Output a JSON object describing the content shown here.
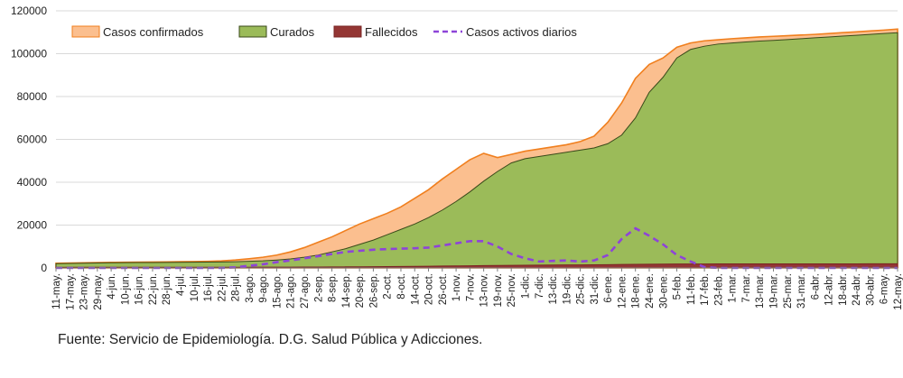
{
  "chart_data": {
    "type": "area",
    "ylim": [
      0,
      120000
    ],
    "yticks": [
      0,
      20000,
      40000,
      60000,
      80000,
      100000,
      120000
    ],
    "grid": true,
    "legend_position": "top",
    "categories": [
      "11-may.",
      "17-may.",
      "23-may.",
      "29-may.",
      "4-jun.",
      "10-jun.",
      "16-jun.",
      "22-jun.",
      "28-jun.",
      "4-jul.",
      "10-jul.",
      "16-jul.",
      "22-jul.",
      "28-jul.",
      "3-ago.",
      "9-ago.",
      "15-ago.",
      "21-ago.",
      "27-ago.",
      "2-sep.",
      "8-sep.",
      "14-sep.",
      "20-sep.",
      "26-sep.",
      "2-oct.",
      "8-oct.",
      "14-oct.",
      "20-oct.",
      "26-oct.",
      "1-nov.",
      "7-nov.",
      "13-nov.",
      "19-nov.",
      "25-nov.",
      "1-dic.",
      "7-dic.",
      "13-dic.",
      "19-dic.",
      "25-dic.",
      "31-dic.",
      "6-ene.",
      "12-ene.",
      "18-ene.",
      "24-ene.",
      "30-ene.",
      "5-feb.",
      "11-feb.",
      "17-feb.",
      "23-feb.",
      "1-mar.",
      "7-mar.",
      "13-mar.",
      "19-mar.",
      "25-mar.",
      "31-mar.",
      "6-abr.",
      "12-abr.",
      "18-abr.",
      "24-abr.",
      "30-abr.",
      "6-may.",
      "12-may."
    ],
    "series": [
      {
        "name": "Casos confirmados",
        "color": "#fbbf8f",
        "stroke": "#f07f1e",
        "values": [
          2200,
          2300,
          2400,
          2500,
          2600,
          2650,
          2700,
          2750,
          2800,
          2900,
          3000,
          3100,
          3300,
          3700,
          4300,
          5000,
          6000,
          7500,
          9500,
          12000,
          14500,
          17500,
          20500,
          23000,
          25500,
          28500,
          32500,
          36500,
          41500,
          46000,
          50500,
          53500,
          51500,
          53000,
          54500,
          55500,
          56500,
          57500,
          59000,
          61500,
          68000,
          77000,
          88500,
          95000,
          98000,
          103000,
          105000,
          106000,
          106500,
          107000,
          107400,
          107800,
          108100,
          108400,
          108700,
          109000,
          109400,
          109800,
          110200,
          110600,
          111000,
          111500
        ]
      },
      {
        "name": "Curados",
        "color": "#9bbb59",
        "stroke": "#3a4a1a",
        "values": [
          2000,
          2100,
          2200,
          2300,
          2400,
          2450,
          2500,
          2550,
          2600,
          2650,
          2700,
          2750,
          2800,
          2900,
          3100,
          3300,
          3700,
          4200,
          5000,
          6000,
          7500,
          9000,
          11000,
          13000,
          15500,
          18000,
          20500,
          23500,
          27000,
          31000,
          35500,
          40500,
          45000,
          49000,
          51000,
          52000,
          53000,
          54000,
          55000,
          56000,
          58000,
          62000,
          70000,
          82000,
          89000,
          98000,
          102000,
          103500,
          104500,
          105000,
          105500,
          105900,
          106200,
          106600,
          107000,
          107400,
          107800,
          108200,
          108600,
          109000,
          109400,
          109800
        ]
      },
      {
        "name": "Fallecidos",
        "color": "#943634",
        "stroke": "#7a2423",
        "values": [
          280,
          290,
          300,
          300,
          305,
          305,
          310,
          310,
          310,
          315,
          315,
          320,
          320,
          330,
          340,
          350,
          360,
          380,
          400,
          430,
          460,
          500,
          540,
          590,
          640,
          690,
          750,
          810,
          880,
          950,
          1020,
          1100,
          1170,
          1230,
          1280,
          1320,
          1360,
          1400,
          1440,
          1480,
          1550,
          1620,
          1700,
          1760,
          1800,
          1830,
          1850,
          1860,
          1870,
          1875,
          1880,
          1885,
          1890,
          1895,
          1900,
          1905,
          1910,
          1915,
          1920,
          1925,
          1930,
          1935
        ]
      },
      {
        "name": "Casos activos diarios",
        "color": "#8e44d8",
        "values": [
          0,
          0,
          0,
          0,
          0,
          0,
          0,
          0,
          0,
          0,
          0,
          0,
          0,
          300,
          1000,
          1700,
          2700,
          3500,
          4500,
          5500,
          6500,
          7500,
          8000,
          8500,
          8800,
          9000,
          9200,
          9500,
          10500,
          11500,
          12500,
          12500,
          10000,
          6500,
          4500,
          3000,
          3300,
          3500,
          3000,
          3500,
          6000,
          13500,
          18500,
          15000,
          11000,
          6000,
          3000,
          400,
          0,
          0,
          0,
          0,
          0,
          0,
          0,
          0,
          0,
          0,
          0,
          0,
          0,
          0
        ]
      }
    ]
  },
  "footer": {
    "source": "Fuente: Servicio de Epidemiología. D.G. Salud Pública y Adicciones."
  }
}
